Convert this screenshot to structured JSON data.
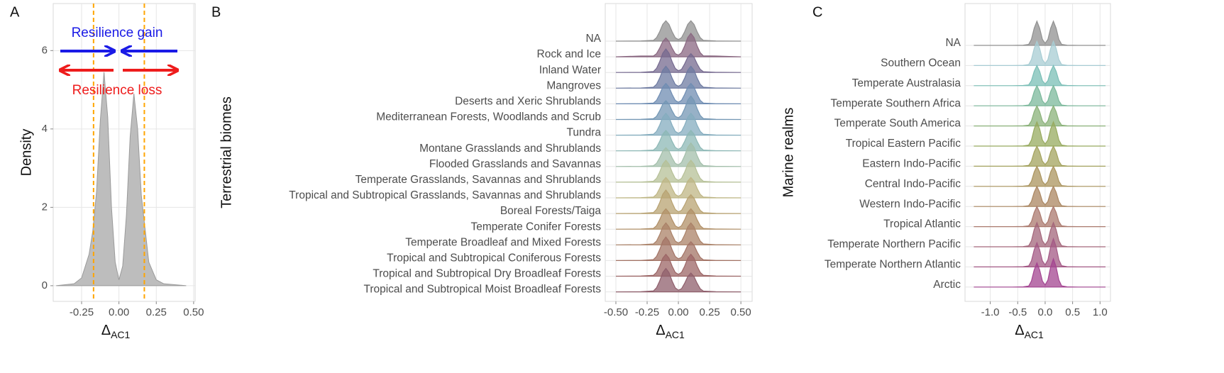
{
  "chart_data": [
    {
      "type": "density",
      "panel_label": "A",
      "y_label": "Density",
      "x_label": {
        "symbol": "Δ",
        "subscript": "AC1"
      },
      "x": [
        -0.42,
        -0.3,
        -0.25,
        -0.2,
        -0.175,
        -0.15,
        -0.125,
        -0.1,
        -0.075,
        -0.05,
        -0.025,
        0,
        0.025,
        0.05,
        0.075,
        0.1,
        0.125,
        0.15,
        0.2,
        0.25,
        0.3,
        0.45
      ],
      "values": [
        0,
        0.05,
        0.2,
        0.8,
        1.4,
        2.4,
        4.2,
        5.45,
        4.3,
        2,
        0.6,
        0.15,
        0.5,
        1.8,
        3.8,
        4.9,
        4,
        2.3,
        0.6,
        0.15,
        0.05,
        0
      ],
      "color": "#bdbdbd",
      "xlim": [
        -0.44,
        0.51
      ],
      "ylim": [
        -0.4,
        7.2
      ],
      "xticks": [
        -0.25,
        {
          "value": 0,
          "label": "0.00"
        },
        0.25,
        {
          "value": 0.5,
          "label": "0.50"
        }
      ],
      "yticks": [
        0,
        2,
        4,
        6
      ],
      "vlines": {
        "values": [
          -0.17,
          0.17
        ],
        "color": "#ffa500"
      },
      "annotations": [
        {
          "text": "Resilience gain",
          "color": "#1a1ae6"
        },
        {
          "text": "Resilience loss",
          "color": "#ee1c1c"
        }
      ],
      "grid": true
    },
    {
      "type": "ridgeline",
      "panel_label": "B",
      "y_label": "Terrestrial biomes",
      "x_label": {
        "symbol": "Δ",
        "subscript": "AC1"
      },
      "x": [
        -0.5,
        -0.3,
        -0.2,
        -0.175,
        -0.15,
        -0.125,
        -0.1,
        -0.075,
        -0.05,
        -0.025,
        0,
        0.025,
        0.05,
        0.075,
        0.1,
        0.125,
        0.15,
        0.175,
        0.2,
        0.3,
        0.5
      ],
      "xlim": [
        -0.585,
        0.59
      ],
      "xticks": [
        {
          "value": -0.5,
          "label": "-0.50"
        },
        -0.25,
        {
          "value": 0,
          "label": "0.00"
        },
        0.25,
        {
          "value": 0.5,
          "label": "0.50"
        }
      ],
      "grid": true,
      "series": [
        {
          "name": "NA",
          "color": "#a9a9a9",
          "values": [
            0,
            0.01,
            0.05,
            0.22,
            0.6,
            1.07,
            1.3,
            1.07,
            0.6,
            0.22,
            0.1,
            0.22,
            0.6,
            1.07,
            1.3,
            1.07,
            0.6,
            0.22,
            0.05,
            0.01,
            0
          ]
        },
        {
          "name": "Rock and Ice",
          "color": "#a27a98",
          "values": [
            0,
            0.05,
            0.05,
            0.2,
            0.55,
            0.98,
            1.2,
            0.98,
            0.55,
            0.2,
            0.11,
            0.26,
            0.69,
            1.23,
            1.5,
            1.23,
            0.69,
            0.26,
            0.06,
            0.05,
            0
          ]
        },
        {
          "name": "Inland Water",
          "color": "#8a7ca8",
          "values": [
            0,
            0.01,
            0.06,
            0.26,
            0.69,
            1.23,
            1.5,
            1.23,
            0.69,
            0.26,
            0.11,
            0.2,
            0.55,
            0.98,
            1.2,
            0.98,
            0.55,
            0.2,
            0.05,
            0.01,
            0
          ]
        },
        {
          "name": "Mangroves",
          "color": "#8090bd",
          "values": [
            0,
            0.01,
            0.06,
            0.24,
            0.64,
            1.15,
            1.4,
            1.15,
            0.64,
            0.24,
            0.12,
            0.24,
            0.64,
            1.15,
            1.4,
            1.15,
            0.64,
            0.24,
            0.06,
            0.01,
            0
          ]
        },
        {
          "name": "Deserts and Xeric Shrublands",
          "color": "#83a6d2",
          "values": [
            0,
            0.01,
            0.05,
            0.22,
            0.6,
            1.07,
            1.3,
            1.07,
            0.6,
            0.22,
            0.1,
            0.22,
            0.6,
            1.07,
            1.3,
            1.07,
            0.6,
            0.22,
            0.05,
            0.01,
            0
          ]
        },
        {
          "name": "Mediterranean Forests, Woodlands and Scrub",
          "color": "#88b2d4",
          "values": [
            0,
            0.01,
            0.05,
            0.2,
            0.55,
            0.98,
            1.2,
            0.98,
            0.55,
            0.2,
            0.11,
            0.26,
            0.69,
            1.23,
            1.5,
            1.23,
            0.69,
            0.26,
            0.06,
            0.01,
            0
          ]
        },
        {
          "name": "Tundra",
          "color": "#9ccbe0",
          "values": [
            0,
            0.01,
            0.06,
            0.24,
            0.64,
            1.15,
            1.4,
            1.15,
            0.64,
            0.24,
            0.12,
            0.24,
            0.64,
            1.15,
            1.4,
            1.15,
            0.64,
            0.24,
            0.06,
            0.01,
            0
          ]
        },
        {
          "name": "Montane Grasslands and Shrublands",
          "color": "#a6d8d6",
          "values": [
            0,
            0.01,
            0.05,
            0.22,
            0.6,
            1.07,
            1.3,
            1.07,
            0.6,
            0.22,
            0.1,
            0.22,
            0.6,
            1.07,
            1.3,
            1.07,
            0.6,
            0.22,
            0.05,
            0.01,
            0
          ]
        },
        {
          "name": "Flooded Grasslands and Savannas",
          "color": "#bfe0c8",
          "values": [
            0,
            0.01,
            0.05,
            0.2,
            0.55,
            0.98,
            1.2,
            0.98,
            0.55,
            0.2,
            0.11,
            0.26,
            0.69,
            1.23,
            1.5,
            1.23,
            0.69,
            0.26,
            0.06,
            0.01,
            0
          ]
        },
        {
          "name": "Temperate Grasslands, Savannas and Shrublands",
          "color": "#d6e2b2",
          "values": [
            0,
            0.01,
            0.06,
            0.24,
            0.64,
            1.15,
            1.4,
            1.15,
            0.64,
            0.24,
            0.12,
            0.24,
            0.64,
            1.15,
            1.4,
            1.15,
            0.64,
            0.24,
            0.06,
            0.01,
            0
          ]
        },
        {
          "name": "Tropical and Subtropical Grasslands, Savannas and Shrublands",
          "color": "#e0d69c",
          "values": [
            0,
            0.01,
            0.05,
            0.22,
            0.6,
            1.07,
            1.3,
            1.07,
            0.6,
            0.22,
            0.1,
            0.22,
            0.6,
            1.07,
            1.3,
            1.07,
            0.6,
            0.22,
            0.05,
            0.01,
            0
          ]
        },
        {
          "name": "Boreal Forests/Taiga",
          "color": "#d8bf86",
          "values": [
            0,
            0.01,
            0.06,
            0.26,
            0.69,
            1.23,
            1.5,
            1.23,
            0.69,
            0.26,
            0.11,
            0.2,
            0.55,
            0.98,
            1.2,
            0.98,
            0.55,
            0.2,
            0.05,
            0.01,
            0
          ]
        },
        {
          "name": "Temperate Conifer Forests",
          "color": "#d0a97a",
          "values": [
            0,
            0.01,
            0.05,
            0.22,
            0.6,
            1.07,
            1.3,
            1.07,
            0.6,
            0.22,
            0.1,
            0.22,
            0.6,
            1.07,
            1.3,
            1.07,
            0.6,
            0.22,
            0.05,
            0.01,
            0
          ]
        },
        {
          "name": "Temperate Broadleaf and Mixed Forests",
          "color": "#c8987a",
          "values": [
            0,
            0.01,
            0.06,
            0.24,
            0.64,
            1.15,
            1.4,
            1.15,
            0.64,
            0.24,
            0.12,
            0.24,
            0.64,
            1.15,
            1.4,
            1.15,
            0.64,
            0.24,
            0.06,
            0.01,
            0
          ]
        },
        {
          "name": "Tropical and Subtropical Coniferous Forests",
          "color": "#c08878",
          "values": [
            0,
            0.01,
            0.06,
            0.26,
            0.69,
            1.23,
            1.5,
            1.23,
            0.69,
            0.26,
            0.11,
            0.2,
            0.55,
            0.98,
            1.2,
            0.98,
            0.55,
            0.2,
            0.05,
            0.01,
            0
          ]
        },
        {
          "name": "Tropical and Subtropical Dry Broadleaf Forests",
          "color": "#b87878",
          "values": [
            0,
            0.01,
            0.06,
            0.24,
            0.64,
            1.15,
            1.4,
            1.15,
            0.64,
            0.24,
            0.12,
            0.24,
            0.64,
            1.15,
            1.4,
            1.15,
            0.64,
            0.24,
            0.06,
            0.01,
            0
          ]
        },
        {
          "name": "Tropical and Subtropical Moist Broadleaf Forests",
          "color": "#a8707f",
          "values": [
            0,
            0.01,
            0.06,
            0.26,
            0.69,
            1.23,
            1.5,
            1.23,
            0.69,
            0.26,
            0.11,
            0.2,
            0.55,
            0.98,
            1.2,
            0.98,
            0.55,
            0.2,
            0.05,
            0.01,
            0
          ]
        }
      ]
    },
    {
      "type": "ridgeline",
      "panel_label": "C",
      "y_label": "Marine realms",
      "x_label": {
        "symbol": "Δ",
        "subscript": "AC1"
      },
      "x": [
        -1.3,
        -0.6,
        -0.4,
        -0.3,
        -0.25,
        -0.2,
        -0.15,
        -0.1,
        -0.05,
        0,
        0.05,
        0.1,
        0.15,
        0.2,
        0.25,
        0.3,
        0.4,
        0.6,
        1.1
      ],
      "xlim": [
        -1.46,
        1.19
      ],
      "xticks": [
        {
          "value": -1,
          "label": "-1.0"
        },
        -0.5,
        {
          "value": 0,
          "label": "0.0"
        },
        0.5,
        {
          "value": 1,
          "label": "1.0"
        }
      ],
      "grid": true,
      "series": [
        {
          "name": "NA",
          "color": "#a9a9a9",
          "values": [
            0,
            0,
            0.01,
            0.05,
            0.3,
            0.85,
            1.2,
            0.85,
            0.3,
            0.1,
            0.3,
            0.85,
            1.2,
            0.85,
            0.3,
            0.05,
            0.01,
            0,
            0
          ]
        },
        {
          "name": "Southern Ocean",
          "color": "#c4f0f8",
          "values": [
            0,
            0,
            0.01,
            0.05,
            0.3,
            0.85,
            1.2,
            0.85,
            0.3,
            0.1,
            0.3,
            0.85,
            1.2,
            0.85,
            0.3,
            0.05,
            0.01,
            0,
            0
          ]
        },
        {
          "name": "Temperate Australasia",
          "color": "#8fe0d6",
          "values": [
            0,
            0,
            0.01,
            0.04,
            0.25,
            0.71,
            1,
            0.71,
            0.25,
            0.08,
            0.25,
            0.71,
            1,
            0.71,
            0.25,
            0.04,
            0.01,
            0,
            0
          ]
        },
        {
          "name": "Temperate Southern Africa",
          "color": "#90d8b6",
          "values": [
            0,
            0,
            0.01,
            0.04,
            0.25,
            0.71,
            1,
            0.71,
            0.25,
            0.08,
            0.25,
            0.71,
            1,
            0.71,
            0.25,
            0.04,
            0.01,
            0,
            0
          ]
        },
        {
          "name": "Temperate South America",
          "color": "#a2d08e",
          "values": [
            0,
            0,
            0.01,
            0.04,
            0.25,
            0.71,
            1,
            0.71,
            0.25,
            0.08,
            0.25,
            0.71,
            1,
            0.71,
            0.25,
            0.04,
            0.01,
            0,
            0
          ]
        },
        {
          "name": "Tropical Eastern Pacific",
          "color": "#b2c870",
          "values": [
            0,
            0,
            0.01,
            0.05,
            0.3,
            0.85,
            1.2,
            0.85,
            0.3,
            0.1,
            0.3,
            0.85,
            1.2,
            0.85,
            0.3,
            0.05,
            0.01,
            0,
            0
          ]
        },
        {
          "name": "Eastern Indo-Pacific",
          "color": "#c0bf6e",
          "values": [
            0,
            0,
            0.01,
            0.04,
            0.25,
            0.71,
            1,
            0.71,
            0.25,
            0.08,
            0.25,
            0.71,
            1,
            0.71,
            0.25,
            0.04,
            0.01,
            0,
            0
          ]
        },
        {
          "name": "Central Indo-Pacific",
          "color": "#c8ae6e",
          "values": [
            0,
            0,
            0.01,
            0.04,
            0.25,
            0.71,
            1,
            0.71,
            0.25,
            0.08,
            0.25,
            0.71,
            1,
            0.71,
            0.25,
            0.04,
            0.01,
            0,
            0
          ]
        },
        {
          "name": "Western Indo-Pacific",
          "color": "#c89e72",
          "values": [
            0,
            0,
            0.01,
            0.04,
            0.25,
            0.71,
            1,
            0.71,
            0.25,
            0.08,
            0.25,
            0.71,
            1,
            0.71,
            0.25,
            0.04,
            0.01,
            0,
            0
          ]
        },
        {
          "name": "Tropical Atlantic",
          "color": "#c88e80",
          "values": [
            0,
            0,
            0.01,
            0.04,
            0.25,
            0.71,
            1,
            0.71,
            0.25,
            0.08,
            0.25,
            0.71,
            1,
            0.71,
            0.25,
            0.04,
            0.01,
            0,
            0
          ]
        },
        {
          "name": "Temperate Northern Pacific",
          "color": "#c07890",
          "values": [
            0,
            0,
            0.01,
            0.05,
            0.3,
            0.85,
            1.2,
            0.85,
            0.3,
            0.1,
            0.3,
            0.85,
            1.2,
            0.85,
            0.3,
            0.05,
            0.01,
            0,
            0
          ]
        },
        {
          "name": "Temperate Northern Atlantic",
          "color": "#c0689c",
          "values": [
            0,
            0,
            0.01,
            0.05,
            0.3,
            0.85,
            1.2,
            0.85,
            0.3,
            0.1,
            0.35,
            1,
            1.4,
            1,
            0.35,
            0.06,
            0.01,
            0,
            0
          ]
        },
        {
          "name": "Arctic",
          "color": "#c050aa",
          "values": [
            0,
            0,
            0.01,
            0.05,
            0.3,
            0.85,
            1.2,
            0.85,
            0.3,
            0.1,
            0.35,
            1,
            1.4,
            1,
            0.35,
            0.06,
            0.01,
            0,
            0
          ]
        }
      ]
    }
  ]
}
